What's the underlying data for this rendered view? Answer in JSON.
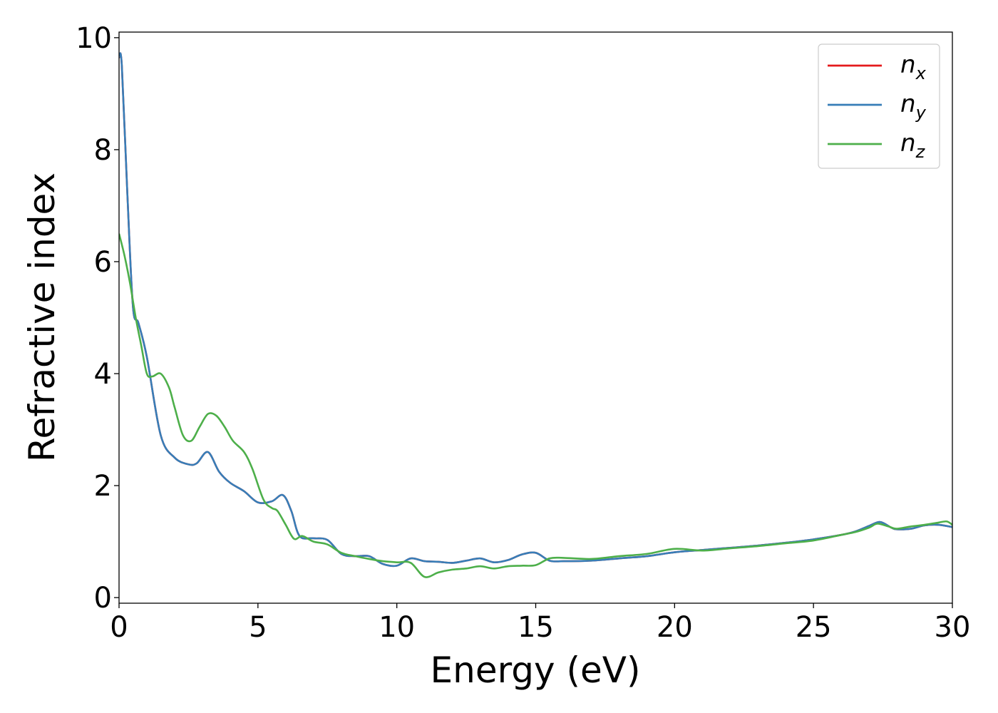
{
  "chart_data": {
    "type": "line",
    "xlabel": "Energy (eV)",
    "ylabel": "Refractive index",
    "xlim": [
      0,
      30
    ],
    "ylim": [
      -0.1,
      10.1
    ],
    "xticks": [
      "0",
      "5",
      "10",
      "15",
      "20",
      "25",
      "30"
    ],
    "yticks": [
      "0",
      "2",
      "4",
      "6",
      "8",
      "10"
    ],
    "grid": false,
    "legend_position": "top-right",
    "series": [
      {
        "name": "n",
        "subscript": "x",
        "color": "#e41a1c",
        "x": [
          0,
          0.1,
          0.3,
          0.5,
          0.7,
          1.0,
          1.5,
          2.0,
          2.5,
          2.8,
          3.2,
          3.6,
          4.0,
          4.5,
          5.0,
          5.5,
          5.9,
          6.2,
          6.5,
          7.0,
          7.5,
          8.0,
          8.5,
          9.0,
          9.5,
          10.0,
          10.5,
          11.0,
          11.5,
          12.0,
          12.5,
          13.0,
          13.5,
          14.0,
          14.5,
          15.0,
          15.5,
          16.0,
          17.0,
          18.0,
          19.0,
          20.0,
          21.0,
          22.0,
          23.0,
          24.0,
          25.0,
          26.0,
          26.5,
          27.0,
          27.4,
          27.8,
          28.0,
          28.5,
          29.0,
          29.5,
          30.0
        ],
        "y": [
          9.65,
          9.5,
          7.2,
          5.2,
          4.9,
          4.3,
          2.9,
          2.5,
          2.38,
          2.4,
          2.6,
          2.25,
          2.05,
          1.9,
          1.7,
          1.72,
          1.83,
          1.55,
          1.1,
          1.06,
          1.03,
          0.78,
          0.74,
          0.74,
          0.6,
          0.57,
          0.7,
          0.65,
          0.64,
          0.62,
          0.66,
          0.7,
          0.63,
          0.67,
          0.77,
          0.8,
          0.66,
          0.65,
          0.66,
          0.7,
          0.74,
          0.81,
          0.85,
          0.89,
          0.93,
          0.98,
          1.04,
          1.12,
          1.18,
          1.28,
          1.35,
          1.25,
          1.22,
          1.23,
          1.29,
          1.3,
          1.26
        ]
      },
      {
        "name": "n",
        "subscript": "y",
        "color": "#377eb8",
        "x": [
          0,
          0.1,
          0.3,
          0.5,
          0.7,
          1.0,
          1.5,
          2.0,
          2.5,
          2.8,
          3.2,
          3.6,
          4.0,
          4.5,
          5.0,
          5.5,
          5.9,
          6.2,
          6.5,
          7.0,
          7.5,
          8.0,
          8.5,
          9.0,
          9.5,
          10.0,
          10.5,
          11.0,
          11.5,
          12.0,
          12.5,
          13.0,
          13.5,
          14.0,
          14.5,
          15.0,
          15.5,
          16.0,
          17.0,
          18.0,
          19.0,
          20.0,
          21.0,
          22.0,
          23.0,
          24.0,
          25.0,
          26.0,
          26.5,
          27.0,
          27.4,
          27.8,
          28.0,
          28.5,
          29.0,
          29.5,
          30.0
        ],
        "y": [
          9.65,
          9.5,
          7.2,
          5.2,
          4.9,
          4.3,
          2.9,
          2.5,
          2.38,
          2.4,
          2.6,
          2.25,
          2.05,
          1.9,
          1.7,
          1.72,
          1.83,
          1.55,
          1.1,
          1.06,
          1.03,
          0.78,
          0.74,
          0.74,
          0.6,
          0.57,
          0.7,
          0.65,
          0.64,
          0.62,
          0.66,
          0.7,
          0.63,
          0.67,
          0.77,
          0.8,
          0.66,
          0.65,
          0.66,
          0.7,
          0.74,
          0.81,
          0.85,
          0.89,
          0.93,
          0.98,
          1.04,
          1.12,
          1.18,
          1.28,
          1.35,
          1.25,
          1.22,
          1.23,
          1.29,
          1.3,
          1.26
        ]
      },
      {
        "name": "n",
        "subscript": "z",
        "color": "#4daf4a",
        "x": [
          0,
          0.2,
          0.4,
          0.6,
          0.8,
          1.0,
          1.2,
          1.5,
          1.8,
          2.0,
          2.3,
          2.6,
          2.9,
          3.2,
          3.5,
          3.8,
          4.1,
          4.5,
          4.8,
          5.2,
          5.5,
          5.7,
          6.0,
          6.3,
          6.6,
          7.0,
          7.5,
          8.0,
          8.5,
          9.0,
          9.5,
          10.0,
          10.5,
          11.0,
          11.5,
          12.0,
          12.5,
          13.0,
          13.5,
          14.0,
          14.5,
          15.0,
          15.5,
          16.0,
          17.0,
          18.0,
          19.0,
          20.0,
          21.0,
          22.0,
          23.0,
          24.0,
          25.0,
          26.0,
          26.5,
          27.0,
          27.3,
          27.7,
          28.0,
          28.5,
          29.0,
          29.5,
          29.8,
          30.0
        ],
        "y": [
          6.5,
          6.1,
          5.6,
          5.0,
          4.5,
          4.0,
          3.95,
          4.0,
          3.75,
          3.4,
          2.9,
          2.8,
          3.05,
          3.28,
          3.25,
          3.05,
          2.8,
          2.6,
          2.3,
          1.75,
          1.6,
          1.55,
          1.3,
          1.05,
          1.1,
          1.0,
          0.95,
          0.8,
          0.74,
          0.69,
          0.65,
          0.63,
          0.62,
          0.37,
          0.45,
          0.5,
          0.52,
          0.56,
          0.52,
          0.56,
          0.57,
          0.58,
          0.7,
          0.71,
          0.69,
          0.74,
          0.78,
          0.87,
          0.84,
          0.88,
          0.92,
          0.97,
          1.02,
          1.12,
          1.17,
          1.25,
          1.32,
          1.27,
          1.23,
          1.27,
          1.3,
          1.34,
          1.36,
          1.3
        ]
      }
    ]
  }
}
